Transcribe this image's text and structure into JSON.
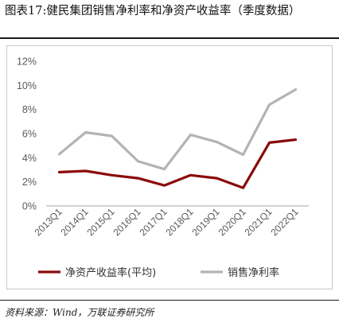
{
  "figure": {
    "title": "图表17:健民集团销售净利率和净资产收益率（季度数据）",
    "source": "资料来源：Wind，万联证券研究所"
  },
  "colors": {
    "roe": "#8b0a0a",
    "npm": "#b3b3b3",
    "axis": "#a6a6a6",
    "text": "#595959"
  },
  "chart_data": {
    "type": "line",
    "categories": [
      "2013Q1",
      "2014Q1",
      "2015Q1",
      "2016Q1",
      "2017Q1",
      "2018Q1",
      "2019Q1",
      "2020Q1",
      "2021Q1",
      "2022Q1"
    ],
    "y_ticks": [
      "0%",
      "2%",
      "4%",
      "6%",
      "8%",
      "10%",
      "12%"
    ],
    "ylim": [
      0,
      12
    ],
    "grid": false,
    "legend_position": "bottom",
    "series": [
      {
        "name": "净资产收益率(平均)",
        "values": [
          2.8,
          2.9,
          2.55,
          2.3,
          1.7,
          2.55,
          2.3,
          1.5,
          5.25,
          5.5
        ]
      },
      {
        "name": "销售净利率",
        "values": [
          4.3,
          6.1,
          5.8,
          3.7,
          3.05,
          5.9,
          5.3,
          4.25,
          8.4,
          9.65
        ]
      }
    ]
  }
}
